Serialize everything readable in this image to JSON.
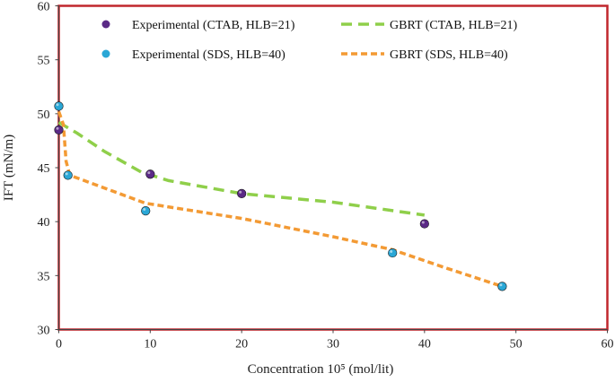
{
  "chart_data": {
    "type": "scatter",
    "title": "",
    "xlabel": "Concentration   10⁵ (mol/lit)",
    "ylabel": "IFT (mN/m)",
    "xlim": [
      0,
      60
    ],
    "ylim": [
      30,
      60
    ],
    "x_ticks": [
      "0",
      "10",
      "20",
      "30",
      "40",
      "50",
      "60"
    ],
    "y_ticks": [
      "30",
      "35",
      "40",
      "45",
      "50",
      "55",
      "60"
    ],
    "grid": false,
    "legend_position": "top",
    "series": [
      {
        "name": "Experimental (CTAB, HLB=21)",
        "kind": "marker",
        "color": "#5b2a86",
        "points": [
          [
            0,
            48.5
          ],
          [
            10,
            44.4
          ],
          [
            20,
            42.6
          ],
          [
            40,
            39.8
          ]
        ]
      },
      {
        "name": "Experimental (SDS, HLB=40)",
        "kind": "marker",
        "color": "#2aa7d6",
        "points": [
          [
            0,
            50.7
          ],
          [
            1,
            44.3
          ],
          [
            9.5,
            41.0
          ],
          [
            36.5,
            37.1
          ],
          [
            48.5,
            34.0
          ]
        ]
      },
      {
        "name": "GBRT (CTAB, HLB=21)",
        "kind": "dashed-line",
        "color": "#8fcf4a",
        "points": [
          [
            0,
            49.2
          ],
          [
            2,
            48.2
          ],
          [
            5,
            46.5
          ],
          [
            9,
            44.6
          ],
          [
            12,
            43.8
          ],
          [
            20,
            42.6
          ],
          [
            30,
            41.8
          ],
          [
            40,
            40.6
          ]
        ]
      },
      {
        "name": "GBRT (SDS, HLB=40)",
        "kind": "dashed-line",
        "color": "#f39a34",
        "points": [
          [
            0,
            50.2
          ],
          [
            0.5,
            49.0
          ],
          [
            0.8,
            45.6
          ],
          [
            1.2,
            44.3
          ],
          [
            9.5,
            41.7
          ],
          [
            20,
            40.3
          ],
          [
            30,
            38.6
          ],
          [
            36.5,
            37.4
          ],
          [
            42,
            35.8
          ],
          [
            48.5,
            34.0
          ]
        ]
      }
    ]
  }
}
